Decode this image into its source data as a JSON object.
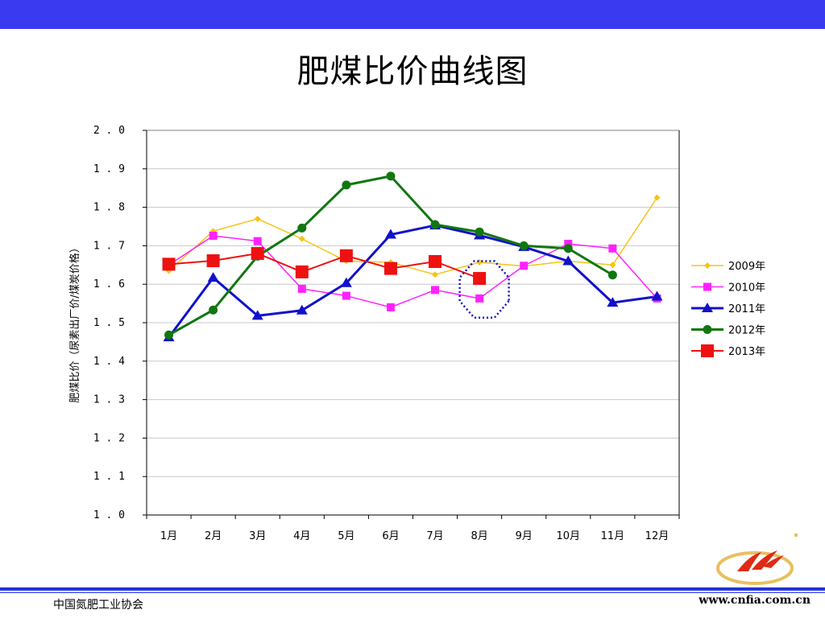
{
  "slide": {
    "title": "肥煤比价曲线图",
    "footer_org": "中国氮肥工业协会",
    "footer_url": "www.cnfia.com.cn",
    "top_bar_color": "#3a3af0"
  },
  "chart_data": {
    "type": "line",
    "title": "",
    "ylabel": "肥煤比价（尿素出厂价/煤炭价格）",
    "xlabel": "",
    "ylim": [
      1.0,
      2.0
    ],
    "yticks": [
      "2.0",
      "1.9",
      "1.8",
      "1.7",
      "1.6",
      "1.5",
      "1.4",
      "1.3",
      "1.2",
      "1.1",
      "1.0"
    ],
    "categories": [
      "1月",
      "2月",
      "3月",
      "4月",
      "5月",
      "6月",
      "7月",
      "8月",
      "9月",
      "10月",
      "11月",
      "12月"
    ],
    "grid": true,
    "legend_position": "right",
    "series": [
      {
        "name": "2009年",
        "color": "#f5c518",
        "marker": "diamond",
        "values": [
          1.635,
          1.738,
          1.77,
          1.718,
          1.66,
          1.657,
          1.625,
          1.657,
          1.647,
          1.66,
          1.65,
          1.825
        ]
      },
      {
        "name": "2010年",
        "color": "#ff22ff",
        "marker": "square",
        "values": [
          1.65,
          1.726,
          1.712,
          1.588,
          1.57,
          1.54,
          1.585,
          1.563,
          1.648,
          1.705,
          1.693,
          1.563
        ]
      },
      {
        "name": "2011年",
        "color": "#1111cc",
        "marker": "triangle",
        "values": [
          1.462,
          1.617,
          1.518,
          1.532,
          1.603,
          1.729,
          1.753,
          1.727,
          1.697,
          1.66,
          1.552,
          1.568
        ]
      },
      {
        "name": "2012年",
        "color": "#117711",
        "marker": "circle",
        "values": [
          1.468,
          1.533,
          1.673,
          1.746,
          1.858,
          1.881,
          1.755,
          1.736,
          1.7,
          1.693,
          1.624,
          null
        ]
      },
      {
        "name": "2013年",
        "color": "#ee1111",
        "marker": "bigsquare",
        "values": [
          1.652,
          1.661,
          1.68,
          1.632,
          1.674,
          1.641,
          1.659,
          1.615,
          null,
          null,
          null,
          null
        ]
      }
    ],
    "annotation": {
      "type": "dotted-octagon",
      "category": "8月",
      "center_value": 1.595,
      "color": "#1111cc"
    }
  }
}
